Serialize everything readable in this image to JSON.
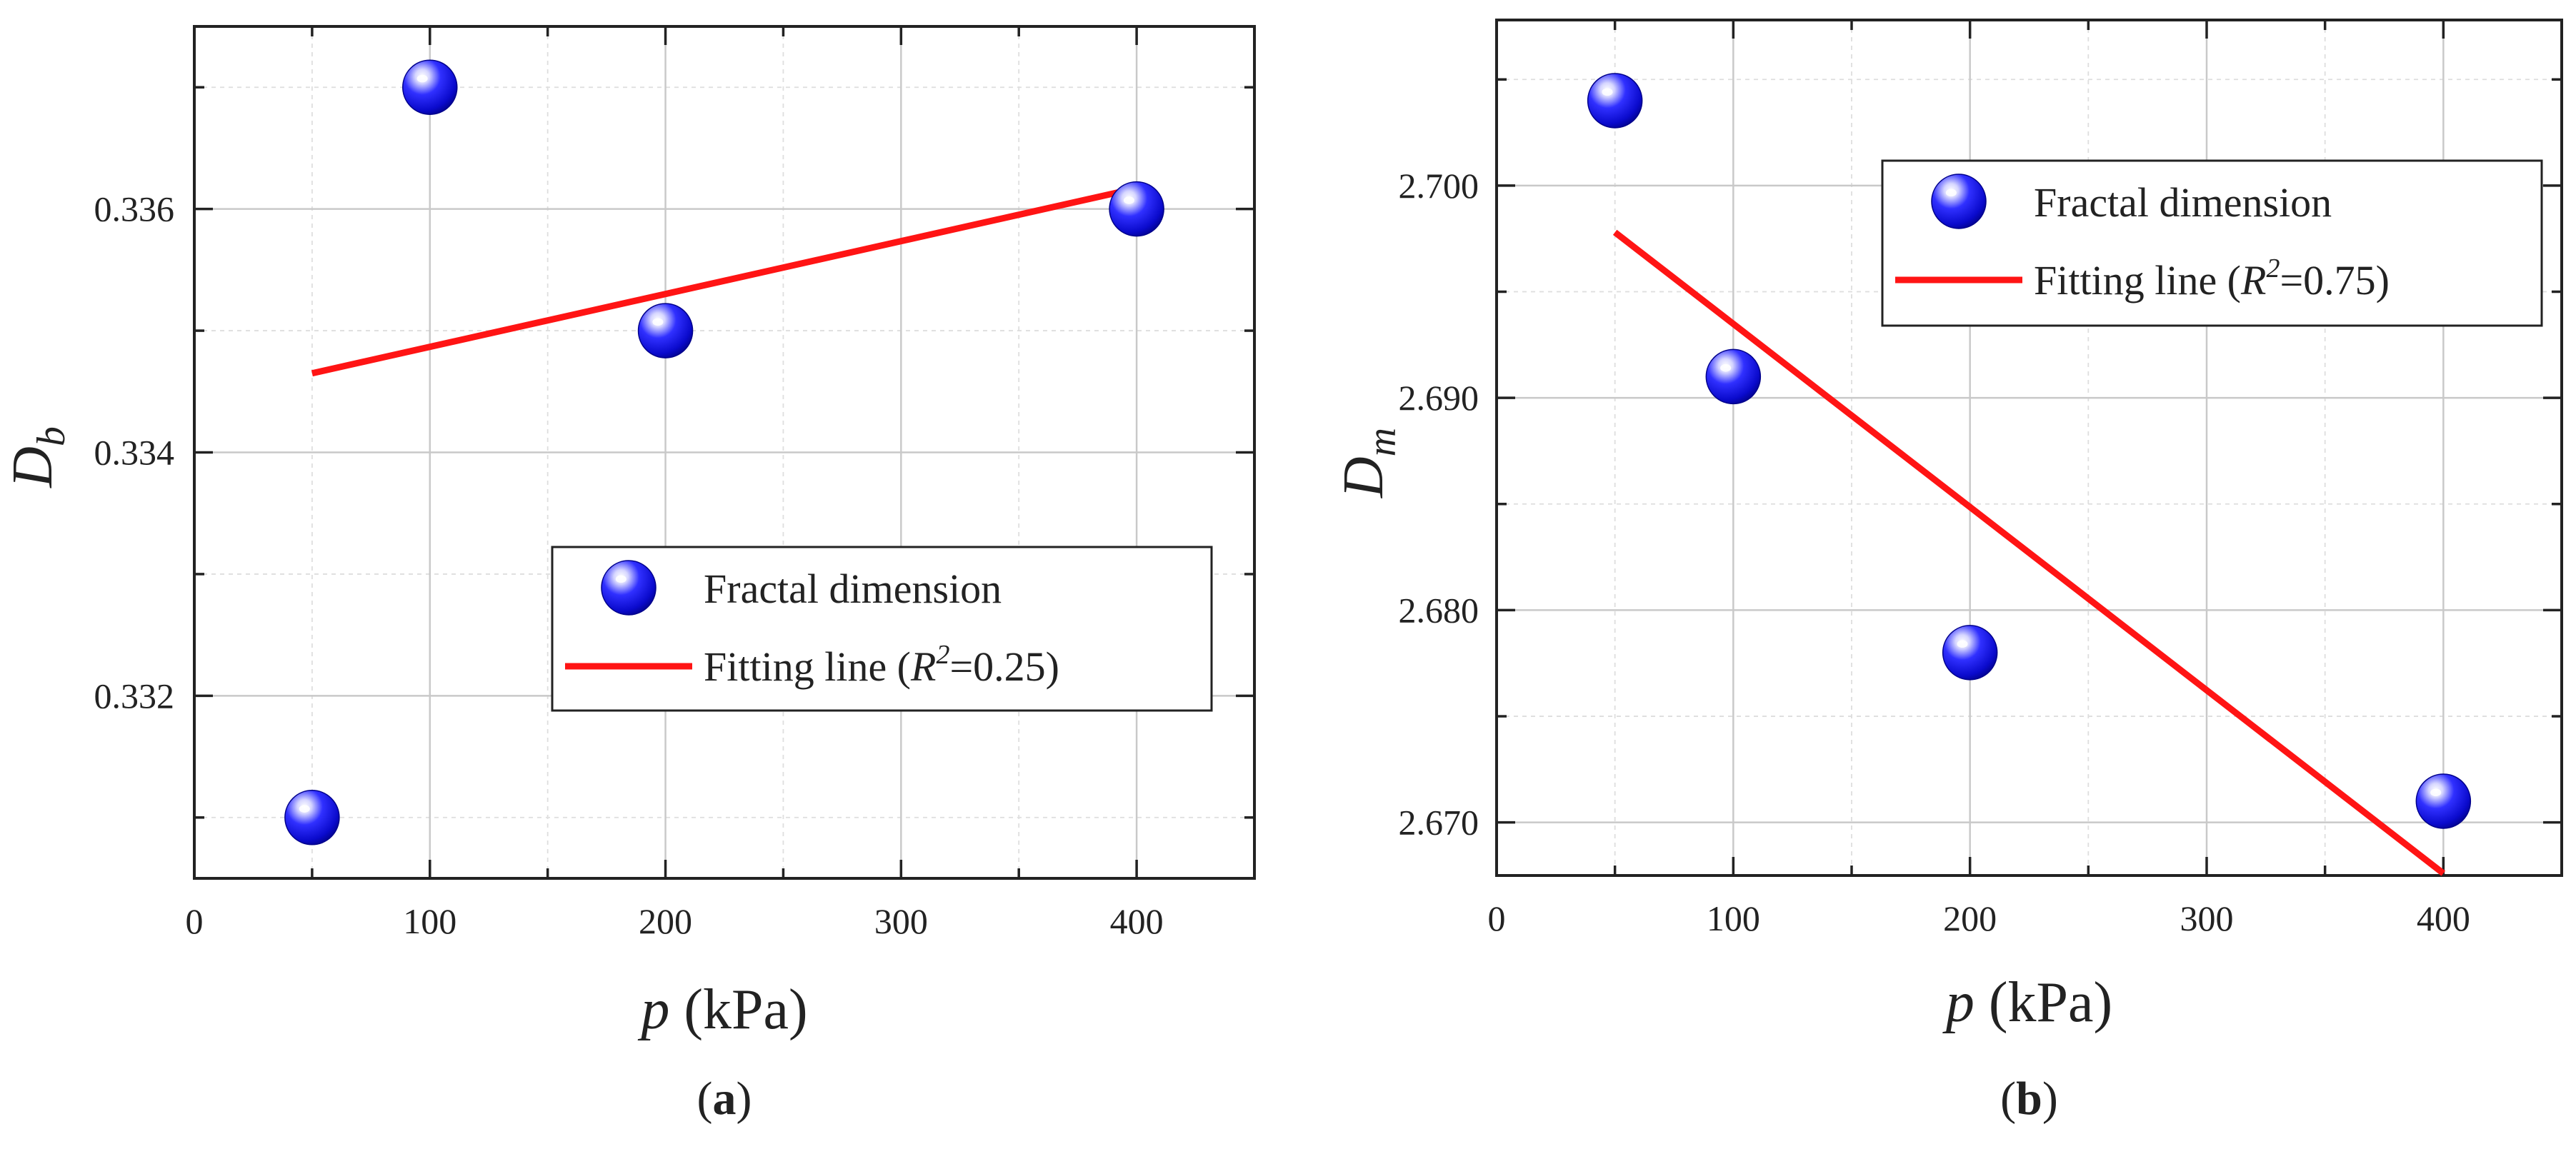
{
  "chart_data": [
    {
      "type": "scatter",
      "panel_label": "a",
      "x_var": "p",
      "x_unit": "(kPa)",
      "y_var": "D",
      "y_sub": "b",
      "xlim": [
        0,
        450
      ],
      "ylim": [
        0.3305,
        0.3375
      ],
      "x_ticks": [
        0,
        100,
        200,
        300,
        400
      ],
      "x_tick_labels": [
        "0",
        "100",
        "200",
        "300",
        "400"
      ],
      "y_ticks": [
        0.332,
        0.334,
        0.336
      ],
      "y_tick_labels": [
        "0.332",
        "0.334",
        "0.336"
      ],
      "x_minor": [
        50,
        150,
        250,
        350
      ],
      "y_minor": [
        0.331,
        0.333,
        0.335,
        0.337
      ],
      "grid": true,
      "legend_position": "lower-right",
      "series": [
        {
          "name": "Fractal dimension",
          "kind": "points",
          "x": [
            50,
            100,
            200,
            400
          ],
          "y": [
            0.331,
            0.337,
            0.335,
            0.336
          ]
        },
        {
          "name": "Fitting line",
          "kind": "line",
          "x": [
            50,
            400
          ],
          "y": [
            0.33465,
            0.33617
          ]
        }
      ],
      "legend": {
        "points_label": "Fractal dimension",
        "line_label_prefix": "Fitting line (",
        "r_symbol": "R",
        "r_power": "2",
        "r_value": "=0.25)"
      }
    },
    {
      "type": "scatter",
      "panel_label": "b",
      "x_var": "p",
      "x_unit": "(kPa)",
      "y_var": "D",
      "y_sub": "m",
      "xlim": [
        0,
        450
      ],
      "ylim": [
        2.6675,
        2.7078
      ],
      "x_ticks": [
        0,
        100,
        200,
        300,
        400
      ],
      "x_tick_labels": [
        "0",
        "100",
        "200",
        "300",
        "400"
      ],
      "y_ticks": [
        2.67,
        2.68,
        2.69,
        2.7
      ],
      "y_tick_labels": [
        "2.670",
        "2.680",
        "2.690",
        "2.700"
      ],
      "x_minor": [
        50,
        150,
        250,
        350
      ],
      "y_minor": [
        2.675,
        2.685,
        2.695,
        2.705
      ],
      "grid": true,
      "legend_position": "top-right",
      "series": [
        {
          "name": "Fractal dimension",
          "kind": "points",
          "x": [
            50,
            100,
            200,
            400
          ],
          "y": [
            2.704,
            2.691,
            2.678,
            2.671
          ]
        },
        {
          "name": "Fitting line",
          "kind": "line",
          "x": [
            50,
            400
          ],
          "y": [
            2.6978,
            2.6676
          ]
        }
      ],
      "legend": {
        "points_label": "Fractal dimension",
        "line_label_prefix": "Fitting line (",
        "r_symbol": "R",
        "r_power": "2",
        "r_value": "=0.75)"
      }
    }
  ],
  "colors": {
    "marker": "#1414e6",
    "marker_dark": "#00008a",
    "fit_line": "#ff1414",
    "text": "#222222"
  }
}
